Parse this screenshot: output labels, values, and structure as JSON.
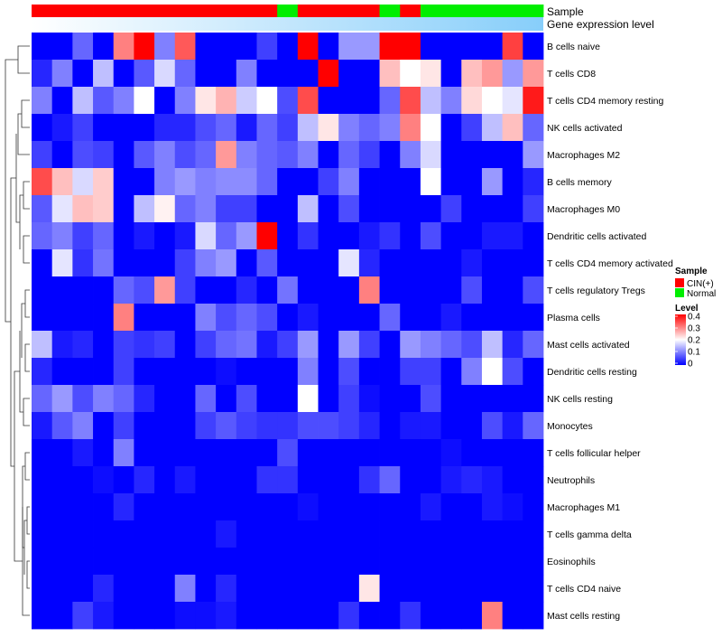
{
  "chart_data": {
    "type": "heatmap",
    "annotations": {
      "sample_title": "Sample",
      "level_title": "Gene expression level"
    },
    "columns": 25,
    "sample_annotation": [
      "CIN(+)",
      "CIN(+)",
      "CIN(+)",
      "CIN(+)",
      "CIN(+)",
      "CIN(+)",
      "CIN(+)",
      "CIN(+)",
      "CIN(+)",
      "CIN(+)",
      "CIN(+)",
      "CIN(+)",
      "Normal",
      "CIN(+)",
      "CIN(+)",
      "CIN(+)",
      "CIN(+)",
      "Normal",
      "CIN(+)",
      "Normal",
      "Normal",
      "Normal",
      "Normal",
      "Normal",
      "Normal"
    ],
    "level_gradient": {
      "from": "#ffffff",
      "to": "#87cefa"
    },
    "rows": [
      {
        "name": "B cells naive",
        "values": [
          0.0,
          0.0,
          0.08,
          0.0,
          0.3,
          0.4,
          0.1,
          0.33,
          0.0,
          0.0,
          0.0,
          0.05,
          0.0,
          0.4,
          0.0,
          0.12,
          0.12,
          0.4,
          0.4,
          0.0,
          0.0,
          0.0,
          0.0,
          0.35,
          0.0
        ]
      },
      {
        "name": "T cells CD8",
        "values": [
          0.03,
          0.1,
          0.0,
          0.15,
          0.0,
          0.07,
          0.17,
          0.08,
          0.0,
          0.0,
          0.1,
          0.0,
          0.0,
          0.0,
          0.4,
          0.0,
          0.0,
          0.25,
          0.2,
          0.22,
          0.0,
          0.25,
          0.28,
          0.12,
          0.28
        ]
      },
      {
        "name": "T cells CD4 memory resting",
        "values": [
          0.1,
          0.0,
          0.15,
          0.07,
          0.1,
          0.2,
          0.0,
          0.1,
          0.22,
          0.26,
          0.16,
          0.2,
          0.06,
          0.34,
          0.0,
          0.0,
          0.0,
          0.08,
          0.34,
          0.15,
          0.1,
          0.23,
          0.2,
          0.18,
          0.38
        ]
      },
      {
        "name": "NK cells activated",
        "values": [
          0.0,
          0.02,
          0.05,
          0.0,
          0.0,
          0.0,
          0.03,
          0.03,
          0.06,
          0.08,
          0.02,
          0.08,
          0.05,
          0.15,
          0.22,
          0.1,
          0.08,
          0.1,
          0.3,
          0.2,
          0.0,
          0.05,
          0.15,
          0.25,
          0.08
        ]
      },
      {
        "name": "Macrophages M2",
        "values": [
          0.05,
          0.0,
          0.06,
          0.05,
          0.0,
          0.07,
          0.1,
          0.06,
          0.08,
          0.28,
          0.1,
          0.08,
          0.07,
          0.1,
          0.0,
          0.08,
          0.05,
          0.0,
          0.1,
          0.17,
          0.0,
          0.0,
          0.0,
          0.0,
          0.12
        ]
      },
      {
        "name": "B cells memory",
        "values": [
          0.34,
          0.25,
          0.17,
          0.24,
          0.0,
          0.0,
          0.1,
          0.12,
          0.1,
          0.11,
          0.11,
          0.08,
          0.0,
          0.0,
          0.05,
          0.1,
          0.0,
          0.0,
          0.0,
          0.2,
          0.0,
          0.0,
          0.12,
          0.0,
          0.03
        ]
      },
      {
        "name": "Macrophages M0",
        "values": [
          0.07,
          0.18,
          0.25,
          0.24,
          0.0,
          0.15,
          0.21,
          0.08,
          0.1,
          0.05,
          0.05,
          0.0,
          0.0,
          0.15,
          0.0,
          0.06,
          0.0,
          0.0,
          0.0,
          0.0,
          0.05,
          0.0,
          0.0,
          0.0,
          0.05
        ]
      },
      {
        "name": "Dendritic cells activated",
        "values": [
          0.08,
          0.1,
          0.05,
          0.08,
          0.0,
          0.02,
          0.0,
          0.02,
          0.17,
          0.08,
          0.12,
          0.4,
          0.0,
          0.04,
          0.0,
          0.0,
          0.02,
          0.04,
          0.0,
          0.06,
          0.0,
          0.0,
          0.02,
          0.02,
          0.0
        ]
      },
      {
        "name": "T cells CD4 memory activated",
        "values": [
          0.0,
          0.18,
          0.04,
          0.09,
          0.0,
          0.0,
          0.0,
          0.05,
          0.1,
          0.12,
          0.0,
          0.07,
          0.0,
          0.0,
          0.0,
          0.18,
          0.03,
          0.0,
          0.0,
          0.0,
          0.0,
          0.02,
          0.0,
          0.0,
          0.0
        ]
      },
      {
        "name": "T cells regulatory  Tregs",
        "values": [
          0.0,
          0.0,
          0.0,
          0.0,
          0.08,
          0.06,
          0.28,
          0.05,
          0.0,
          0.0,
          0.03,
          0.0,
          0.09,
          0.0,
          0.0,
          0.0,
          0.3,
          0.0,
          0.0,
          0.0,
          0.0,
          0.06,
          0.0,
          0.0,
          0.06
        ]
      },
      {
        "name": "Plasma cells",
        "values": [
          0.0,
          0.0,
          0.0,
          0.0,
          0.3,
          0.0,
          0.0,
          0.0,
          0.1,
          0.06,
          0.08,
          0.06,
          0.0,
          0.02,
          0.0,
          0.0,
          0.0,
          0.08,
          0.0,
          0.0,
          0.02,
          0.0,
          0.0,
          0.0,
          0.0
        ]
      },
      {
        "name": "Mast cells activated",
        "values": [
          0.15,
          0.02,
          0.03,
          0.0,
          0.05,
          0.04,
          0.05,
          0.0,
          0.05,
          0.08,
          0.09,
          0.02,
          0.05,
          0.12,
          0.0,
          0.12,
          0.05,
          0.0,
          0.12,
          0.1,
          0.08,
          0.06,
          0.15,
          0.03,
          0.08
        ]
      },
      {
        "name": "Dendritic cells resting",
        "values": [
          0.03,
          0.0,
          0.0,
          0.0,
          0.05,
          0.0,
          0.0,
          0.0,
          0.0,
          0.01,
          0.0,
          0.0,
          0.0,
          0.1,
          0.0,
          0.06,
          0.0,
          0.0,
          0.05,
          0.05,
          0.0,
          0.1,
          0.2,
          0.06,
          0.0
        ]
      },
      {
        "name": "NK cells resting",
        "values": [
          0.08,
          0.12,
          0.06,
          0.1,
          0.08,
          0.03,
          0.0,
          0.0,
          0.08,
          0.0,
          0.06,
          0.0,
          0.0,
          0.2,
          0.0,
          0.05,
          0.01,
          0.0,
          0.0,
          0.06,
          0.0,
          0.0,
          0.0,
          0.0,
          0.0
        ]
      },
      {
        "name": "Monocytes",
        "values": [
          0.02,
          0.07,
          0.1,
          0.0,
          0.05,
          0.0,
          0.0,
          0.0,
          0.05,
          0.07,
          0.05,
          0.04,
          0.04,
          0.06,
          0.06,
          0.05,
          0.03,
          0.0,
          0.02,
          0.02,
          0.0,
          0.0,
          0.06,
          0.02,
          0.08
        ]
      },
      {
        "name": "T cells follicular helper",
        "values": [
          0.0,
          0.0,
          0.02,
          0.0,
          0.1,
          0.0,
          0.0,
          0.0,
          0.0,
          0.0,
          0.0,
          0.0,
          0.06,
          0.0,
          0.0,
          0.0,
          0.0,
          0.0,
          0.0,
          0.0,
          0.01,
          0.0,
          0.0,
          0.0,
          0.0
        ]
      },
      {
        "name": "Neutrophils",
        "values": [
          0.0,
          0.0,
          0.0,
          0.01,
          0.0,
          0.03,
          0.0,
          0.02,
          0.0,
          0.0,
          0.0,
          0.04,
          0.04,
          0.0,
          0.0,
          0.0,
          0.04,
          0.08,
          0.0,
          0.0,
          0.02,
          0.03,
          0.02,
          0.0,
          0.0
        ]
      },
      {
        "name": "Macrophages M1",
        "values": [
          0.0,
          0.0,
          0.0,
          0.0,
          0.03,
          0.0,
          0.0,
          0.0,
          0.0,
          0.0,
          0.0,
          0.0,
          0.0,
          0.01,
          0.0,
          0.0,
          0.0,
          0.0,
          0.0,
          0.02,
          0.0,
          0.0,
          0.02,
          0.01,
          0.0
        ]
      },
      {
        "name": "T cells gamma delta",
        "values": [
          0.0,
          0.0,
          0.0,
          0.0,
          0.0,
          0.0,
          0.0,
          0.0,
          0.0,
          0.02,
          0.0,
          0.0,
          0.0,
          0.0,
          0.0,
          0.0,
          0.0,
          0.0,
          0.0,
          0.0,
          0.0,
          0.0,
          0.0,
          0.0,
          0.0
        ]
      },
      {
        "name": "Eosinophils",
        "values": [
          0.0,
          0.0,
          0.0,
          0.0,
          0.0,
          0.0,
          0.0,
          0.0,
          0.0,
          0.0,
          0.0,
          0.0,
          0.0,
          0.0,
          0.0,
          0.0,
          0.0,
          0.0,
          0.0,
          0.0,
          0.0,
          0.0,
          0.0,
          0.0,
          0.0
        ]
      },
      {
        "name": "T cells CD4 naive",
        "values": [
          0.0,
          0.0,
          0.0,
          0.03,
          0.0,
          0.0,
          0.0,
          0.1,
          0.0,
          0.03,
          0.0,
          0.0,
          0.0,
          0.0,
          0.0,
          0.0,
          0.22,
          0.0,
          0.0,
          0.0,
          0.0,
          0.0,
          0.0,
          0.0,
          0.0
        ]
      },
      {
        "name": "Mast cells resting",
        "values": [
          0.0,
          0.0,
          0.05,
          0.02,
          0.0,
          0.0,
          0.0,
          0.01,
          0.01,
          0.02,
          0.0,
          0.0,
          0.0,
          0.0,
          0.0,
          0.04,
          0.0,
          0.0,
          0.04,
          0.0,
          0.0,
          0.0,
          0.3,
          0.0,
          0.0
        ]
      }
    ],
    "color_scale": {
      "min": 0,
      "mid": 0.2,
      "max": 0.4,
      "low": "#0000ff",
      "midColor": "#ffffff",
      "high": "#ff0000"
    },
    "legend": {
      "sample_title": "Sample",
      "sample_items": [
        {
          "label": "CIN(+)",
          "color": "#ff0000"
        },
        {
          "label": "Normal",
          "color": "#00ee00"
        }
      ],
      "level_title": "Level",
      "level_ticks": [
        "0.4",
        "0.3",
        "0.2",
        "0.1",
        "0"
      ],
      "position": "right"
    }
  }
}
